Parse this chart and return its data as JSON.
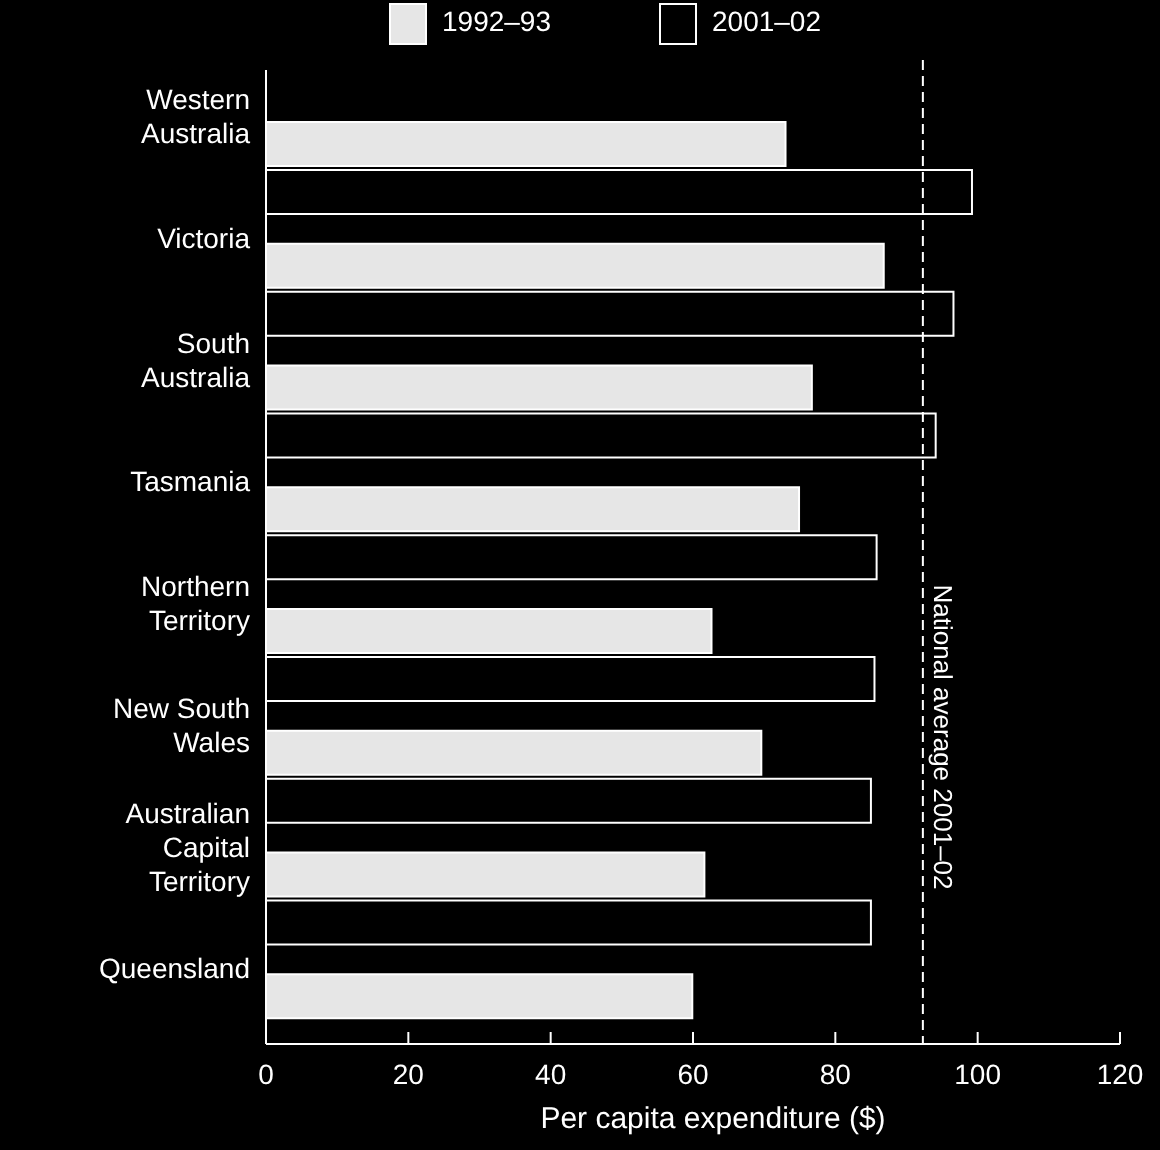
{
  "chart_data": {
    "type": "bar",
    "orientation": "horizontal",
    "categories": [
      "Western Australia",
      "Victoria",
      "South Australia",
      "Tasmania",
      "Northern Territory",
      "New South Wales",
      "Australian Capital Territory",
      "Queensland"
    ],
    "series": [
      {
        "name": "1992–93",
        "color": "#e6e6e6",
        "values": [
          73,
          86.8,
          76.7,
          74.9,
          62.6,
          69.6,
          61.6,
          59.9
        ]
      },
      {
        "name": "2001–02",
        "color": "#000000",
        "values": [
          99.2,
          96.6,
          94.1,
          85.8,
          85.5,
          85,
          85,
          null
        ]
      }
    ],
    "xlim": [
      0,
      120
    ],
    "xticks": [
      0,
      20,
      40,
      60,
      80,
      100,
      120
    ],
    "xlabel": "Per capita expenditure ($)",
    "legend": "top",
    "ref_lines": [
      {
        "axis": "x",
        "value": 92.3,
        "label": "National average 2001–02",
        "line_style": "dashed"
      }
    ]
  }
}
